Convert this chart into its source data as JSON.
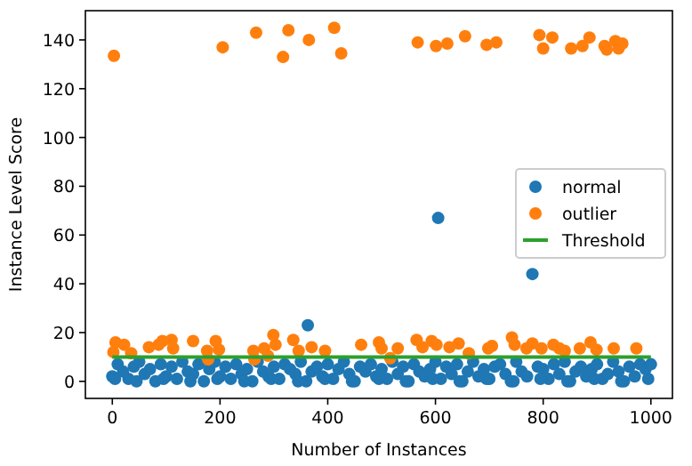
{
  "chart_data": {
    "type": "scatter",
    "xlabel": "Number of Instances",
    "ylabel": "Instance Level Score",
    "xlim": [
      -50,
      1040
    ],
    "ylim": [
      -7,
      152
    ],
    "xticks": [
      0,
      200,
      400,
      600,
      800,
      1000
    ],
    "yticks": [
      0,
      20,
      40,
      60,
      80,
      100,
      120,
      140
    ],
    "legend": "center right",
    "grid": false,
    "series": [
      {
        "name": "normal",
        "color": "#1f77b4",
        "marker": "circle",
        "x": [
          0,
          10,
          20,
          30,
          40,
          50,
          60,
          70,
          80,
          90,
          100,
          110,
          120,
          130,
          140,
          150,
          160,
          170,
          180,
          190,
          200,
          210,
          220,
          230,
          240,
          250,
          260,
          270,
          280,
          290,
          300,
          310,
          320,
          330,
          340,
          350,
          360,
          363,
          370,
          380,
          390,
          400,
          410,
          420,
          430,
          440,
          450,
          460,
          470,
          480,
          490,
          500,
          510,
          520,
          530,
          540,
          550,
          560,
          570,
          580,
          590,
          600,
          605,
          610,
          620,
          630,
          640,
          650,
          660,
          670,
          680,
          690,
          700,
          710,
          720,
          730,
          740,
          750,
          760,
          770,
          780,
          790,
          800,
          810,
          820,
          830,
          840,
          850,
          860,
          870,
          880,
          890,
          900,
          910,
          920,
          930,
          940,
          950,
          960,
          970,
          980,
          990,
          1000,
          5,
          45,
          95,
          145,
          195,
          245,
          295,
          345,
          395,
          445,
          495,
          545,
          595,
          645,
          695,
          745,
          795,
          845,
          895,
          945,
          995
        ],
        "values": [
          2,
          7,
          4,
          1,
          6,
          8,
          3,
          5,
          0,
          7,
          2,
          6,
          1,
          8,
          4,
          3,
          7,
          0,
          5,
          8,
          2,
          6,
          1,
          7,
          3,
          5,
          0,
          8,
          4,
          2,
          6,
          1,
          7,
          5,
          3,
          8,
          0,
          23,
          4,
          6,
          2,
          7,
          1,
          5,
          8,
          3,
          0,
          6,
          4,
          7,
          2,
          5,
          1,
          8,
          3,
          6,
          0,
          7,
          4,
          2,
          5,
          8,
          67,
          1,
          6,
          3,
          7,
          0,
          4,
          8,
          2,
          5,
          1,
          6,
          7,
          3,
          0,
          8,
          4,
          2,
          44,
          6,
          5,
          1,
          7,
          3,
          8,
          0,
          4,
          6,
          2,
          5,
          7,
          1,
          3,
          8,
          4,
          0,
          6,
          2,
          7,
          5,
          7,
          1,
          0,
          1,
          0,
          1,
          0,
          1,
          0,
          1,
          0,
          1,
          0,
          1,
          0,
          1,
          0,
          1,
          0,
          1,
          0,
          1
        ]
      },
      {
        "name": "outlier",
        "color": "#ff7f0e",
        "marker": "circle",
        "x": [
          3,
          205,
          267,
          317,
          327,
          365,
          412,
          425,
          567,
          601,
          622,
          655,
          695,
          713,
          793,
          800,
          817,
          852,
          873,
          886,
          914,
          918,
          934,
          940,
          947,
          2,
          6,
          22,
          35,
          68,
          86,
          93,
          110,
          113,
          150,
          176,
          178,
          192,
          198,
          262,
          264,
          282,
          289,
          299,
          303,
          336,
          346,
          370,
          395,
          462,
          495,
          500,
          516,
          530,
          565,
          576,
          593,
          602,
          626,
          643,
          662,
          698,
          705,
          742,
          747,
          769,
          780,
          797,
          819,
          830,
          840,
          868,
          888,
          899,
          931,
          973
        ],
        "values": [
          133.5,
          137,
          143,
          133,
          144,
          140,
          145,
          134.5,
          139,
          137.5,
          138.5,
          141.5,
          138,
          139,
          142,
          136.5,
          141,
          136.5,
          137.5,
          141,
          137.5,
          136,
          139.5,
          136.5,
          138.5,
          12,
          16,
          15,
          11.5,
          14,
          15,
          16.5,
          17,
          13.5,
          16.5,
          12.5,
          9,
          16.5,
          13,
          12.5,
          9,
          13.5,
          10.5,
          19,
          15,
          17,
          12.5,
          14,
          12.5,
          15,
          16,
          13.5,
          9.5,
          13.5,
          17,
          14,
          16.5,
          15,
          14,
          15.5,
          11.5,
          13.5,
          14.5,
          18,
          15,
          13.5,
          15.5,
          13.5,
          15,
          13.5,
          12.5,
          13.5,
          16,
          13,
          13.5,
          13.5
        ]
      },
      {
        "name": "Threshold",
        "type": "line",
        "marker": "none",
        "color": "#2ca02c",
        "x": [
          0,
          1000
        ],
        "values": [
          10,
          10
        ]
      }
    ]
  }
}
